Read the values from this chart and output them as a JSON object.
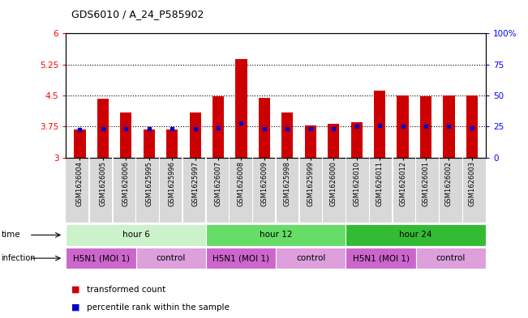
{
  "title": "GDS6010 / A_24_P585902",
  "samples": [
    "GSM1626004",
    "GSM1626005",
    "GSM1626006",
    "GSM1625995",
    "GSM1625996",
    "GSM1625997",
    "GSM1626007",
    "GSM1626008",
    "GSM1626009",
    "GSM1625998",
    "GSM1625999",
    "GSM1626000",
    "GSM1626010",
    "GSM1626011",
    "GSM1626012",
    "GSM1626001",
    "GSM1626002",
    "GSM1626003"
  ],
  "red_values": [
    3.67,
    4.42,
    4.08,
    3.68,
    3.68,
    4.08,
    4.47,
    5.37,
    4.43,
    4.08,
    3.78,
    3.82,
    3.85,
    4.62,
    4.5,
    4.48,
    4.5,
    4.5
  ],
  "blue_values": [
    3.68,
    3.7,
    3.7,
    3.7,
    3.7,
    3.7,
    3.72,
    3.83,
    3.7,
    3.7,
    3.7,
    3.7,
    3.75,
    3.77,
    3.76,
    3.75,
    3.76,
    3.72
  ],
  "ylim_left": [
    3.0,
    6.0
  ],
  "ylim_right": [
    0,
    100
  ],
  "yticks_left": [
    3.0,
    3.75,
    4.5,
    5.25,
    6.0
  ],
  "ytick_labels_left": [
    "3",
    "3.75",
    "4.5",
    "5.25",
    "6"
  ],
  "yticks_right": [
    0,
    25,
    50,
    75,
    100
  ],
  "ytick_labels_right": [
    "0",
    "25",
    "50",
    "75",
    "100%"
  ],
  "hlines": [
    3.75,
    4.5,
    5.25
  ],
  "time_groups": [
    {
      "label": "hour 6",
      "start": 0,
      "end": 6,
      "color": "#ccf2cc"
    },
    {
      "label": "hour 12",
      "start": 6,
      "end": 12,
      "color": "#66dd66"
    },
    {
      "label": "hour 24",
      "start": 12,
      "end": 18,
      "color": "#33bb33"
    }
  ],
  "infection_groups": [
    {
      "label": "H5N1 (MOI 1)",
      "start": 0,
      "end": 3,
      "color": "#cc66cc"
    },
    {
      "label": "control",
      "start": 3,
      "end": 6,
      "color": "#dda0dd"
    },
    {
      "label": "H5N1 (MOI 1)",
      "start": 6,
      "end": 9,
      "color": "#cc66cc"
    },
    {
      "label": "control",
      "start": 9,
      "end": 12,
      "color": "#dda0dd"
    },
    {
      "label": "H5N1 (MOI 1)",
      "start": 12,
      "end": 15,
      "color": "#cc66cc"
    },
    {
      "label": "control",
      "start": 15,
      "end": 18,
      "color": "#dda0dd"
    }
  ],
  "bar_color": "#cc0000",
  "dot_color": "#0000cc",
  "bar_width": 0.5,
  "ybase": 3.0,
  "sample_bg_color": "#d8d8d8",
  "legend_items": [
    {
      "color": "#cc0000",
      "label": "transformed count"
    },
    {
      "color": "#0000cc",
      "label": "percentile rank within the sample"
    }
  ]
}
